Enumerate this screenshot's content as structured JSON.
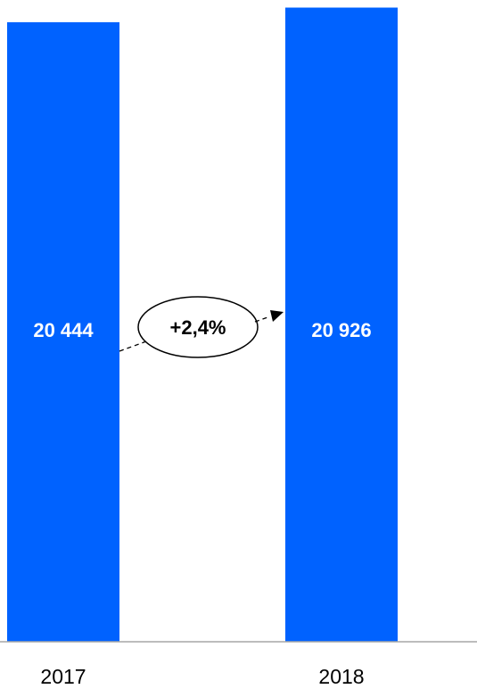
{
  "chart_data": {
    "type": "bar",
    "categories": [
      "2017",
      "2018"
    ],
    "values": [
      20444,
      20926
    ],
    "data_labels": [
      "20 444",
      "20 926"
    ],
    "title": "",
    "xlabel": "",
    "ylabel": "",
    "grid": false,
    "legend": "none",
    "bar_color": "#0062ff",
    "annotations": [
      {
        "type": "growth-arrow",
        "from": "2017",
        "to": "2018",
        "text": "+2,4%"
      }
    ]
  }
}
